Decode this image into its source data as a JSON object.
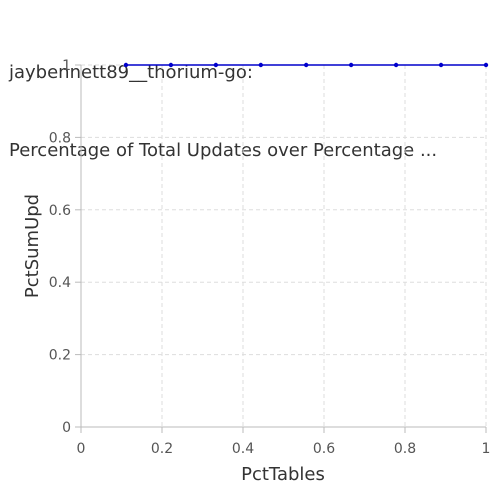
{
  "chart_data": {
    "type": "line",
    "title": [
      "jaybennett89__thorium-go:",
      "Percentage of Total Updates over Percentage ..."
    ],
    "xlabel": "PctTables",
    "ylabel": "PctSumUpd",
    "xlim": [
      0,
      1
    ],
    "ylim": [
      0,
      1
    ],
    "xticks": [
      "0",
      "0.2",
      "0.4",
      "0.6",
      "0.8",
      "1"
    ],
    "yticks": [
      "0",
      "0.2",
      "0.4",
      "0.6",
      "0.8",
      "1"
    ],
    "grid": true,
    "series": [
      {
        "color": "#0000cc",
        "x": [
          0.111,
          0.222,
          0.333,
          0.444,
          0.556,
          0.667,
          0.778,
          0.889,
          1.0
        ],
        "y": [
          1,
          1,
          1,
          1,
          1,
          1,
          1,
          1,
          1
        ]
      }
    ]
  }
}
